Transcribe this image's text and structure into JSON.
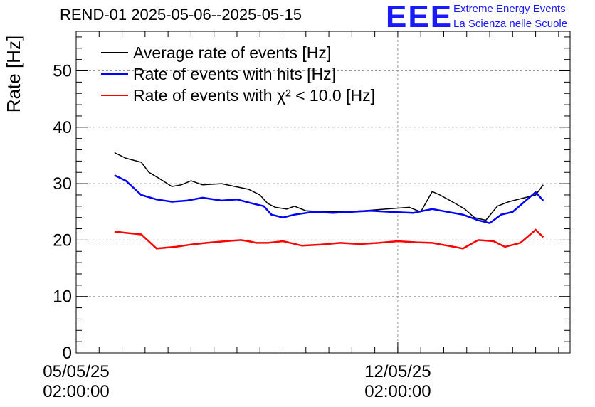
{
  "title": "REND-01 2025-05-06--2025-05-15",
  "logo": {
    "mark": "EEE",
    "line1": "Extreme Energy Events",
    "line2": "La Scienza nelle Scuole"
  },
  "colors": {
    "average": "#000000",
    "hits": "#0000ff",
    "chi2": "#ff0000",
    "logo": "#1a1aff"
  },
  "chart_data": {
    "type": "line",
    "title": "REND-01 2025-05-06--2025-05-15",
    "ylabel": "Rate [Hz]",
    "xlabel": "",
    "ylim": [
      0,
      57
    ],
    "xlim": [
      "2025-05-05 02:00:00",
      "2025-05-15 20:00:00"
    ],
    "yticks": [
      0,
      10,
      20,
      30,
      40,
      50
    ],
    "xticks": [
      {
        "x": "2025-05-05 02:00:00",
        "line1": "05/05/25",
        "line2": "02:00:00"
      },
      {
        "x": "2025-05-12 02:00:00",
        "line1": "12/05/25",
        "line2": "02:00:00"
      }
    ],
    "grid": true,
    "legend_position": "top-left",
    "series": [
      {
        "name": "Average rate of events [Hz]",
        "color": "#000000",
        "x": [
          "2025-05-05 22:00",
          "2025-05-06 04:00",
          "2025-05-06 12:00",
          "2025-05-06 16:00",
          "2025-05-06 21:00",
          "2025-05-07 04:00",
          "2025-05-07 09:00",
          "2025-05-07 14:00",
          "2025-05-07 20:00",
          "2025-05-08 06:00",
          "2025-05-08 13:00",
          "2025-05-08 20:00",
          "2025-05-09 02:00",
          "2025-05-09 06:00",
          "2025-05-09 10:00",
          "2025-05-09 16:00",
          "2025-05-09 20:00",
          "2025-05-10 02:00",
          "2025-05-10 12:00",
          "2025-05-10 22:00",
          "2025-05-11 08:00",
          "2025-05-11 20:00",
          "2025-05-12 08:00",
          "2025-05-12 14:00",
          "2025-05-12 20:00",
          "2025-05-13 00:00",
          "2025-05-13 08:00",
          "2025-05-13 13:00",
          "2025-05-13 18:00",
          "2025-05-14 00:00",
          "2025-05-14 06:00",
          "2025-05-14 12:00",
          "2025-05-15 02:00",
          "2025-05-15 06:00"
        ],
        "y": [
          35.5,
          34.5,
          33.8,
          32.0,
          31.0,
          29.5,
          29.8,
          30.5,
          29.8,
          30.0,
          29.5,
          29.0,
          28.0,
          26.5,
          25.8,
          25.5,
          26.0,
          25.2,
          25.0,
          25.0,
          25.2,
          25.5,
          25.8,
          25.0,
          28.6,
          28.0,
          26.5,
          25.5,
          24.0,
          23.5,
          26.0,
          26.8,
          28.0,
          29.8
        ]
      },
      {
        "name": "Rate of events with hits [Hz]",
        "color": "#0000ff",
        "x": [
          "2025-05-05 22:00",
          "2025-05-06 04:00",
          "2025-05-06 12:00",
          "2025-05-06 20:00",
          "2025-05-07 04:00",
          "2025-05-07 12:00",
          "2025-05-07 20:00",
          "2025-05-08 06:00",
          "2025-05-08 14:00",
          "2025-05-08 22:00",
          "2025-05-09 04:00",
          "2025-05-09 08:00",
          "2025-05-09 14:00",
          "2025-05-09 20:00",
          "2025-05-10 06:00",
          "2025-05-10 16:00",
          "2025-05-11 02:00",
          "2025-05-11 12:00",
          "2025-05-11 22:00",
          "2025-05-12 10:00",
          "2025-05-12 20:00",
          "2025-05-13 04:00",
          "2025-05-13 12:00",
          "2025-05-13 20:00",
          "2025-05-14 02:00",
          "2025-05-14 08:00",
          "2025-05-14 14:00",
          "2025-05-15 02:00",
          "2025-05-15 06:00"
        ],
        "y": [
          31.5,
          30.5,
          28.0,
          27.2,
          26.8,
          27.0,
          27.5,
          27.0,
          27.2,
          26.5,
          26.0,
          24.5,
          24.0,
          24.5,
          25.0,
          24.8,
          25.0,
          25.2,
          25.0,
          24.8,
          25.5,
          25.0,
          24.5,
          23.5,
          23.0,
          24.5,
          25.0,
          28.5,
          27.0
        ]
      },
      {
        "name": "Rate of events with χ² < 10.0 [Hz]",
        "color": "#ff0000",
        "x": [
          "2025-05-05 22:00",
          "2025-05-06 06:00",
          "2025-05-06 12:00",
          "2025-05-06 20:00",
          "2025-05-07 06:00",
          "2025-05-07 14:00",
          "2025-05-07 22:00",
          "2025-05-08 08:00",
          "2025-05-08 16:00",
          "2025-05-08 20:00",
          "2025-05-09 00:00",
          "2025-05-09 06:00",
          "2025-05-09 14:00",
          "2025-05-10 00:00",
          "2025-05-10 10:00",
          "2025-05-10 20:00",
          "2025-05-11 06:00",
          "2025-05-11 16:00",
          "2025-05-12 02:00",
          "2025-05-12 12:00",
          "2025-05-12 20:00",
          "2025-05-13 04:00",
          "2025-05-13 12:00",
          "2025-05-13 20:00",
          "2025-05-14 04:00",
          "2025-05-14 10:00",
          "2025-05-14 18:00",
          "2025-05-15 02:00",
          "2025-05-15 06:00"
        ],
        "y": [
          21.5,
          21.2,
          21.0,
          18.5,
          18.8,
          19.2,
          19.5,
          19.8,
          20.0,
          19.8,
          19.5,
          19.5,
          19.8,
          19.0,
          19.2,
          19.5,
          19.3,
          19.5,
          19.8,
          19.6,
          19.5,
          19.0,
          18.5,
          20.0,
          19.8,
          18.8,
          19.5,
          21.8,
          20.5
        ]
      }
    ]
  }
}
